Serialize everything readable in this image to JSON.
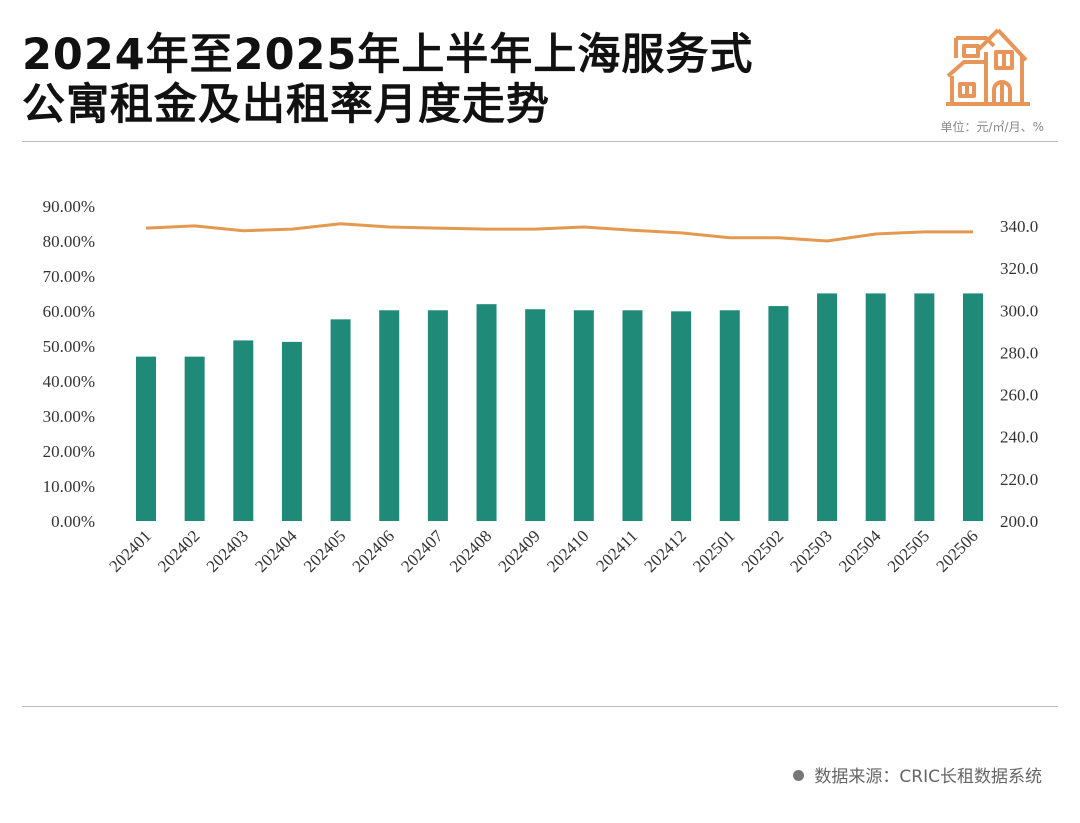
{
  "title_line1": "2024年至2025年上半年上海服务式",
  "title_line2": "公寓租金及出租率月度走势",
  "unit": "单位：元/㎡/月、%",
  "icon": "house-icon",
  "footer": "数据来源：CRIC长租数据系统",
  "chart_data": {
    "type": "bar+line",
    "categories": [
      "202401",
      "202402",
      "202403",
      "202404",
      "202405",
      "202406",
      "202407",
      "202408",
      "202409",
      "202410",
      "202411",
      "202412",
      "202501",
      "202502",
      "202503",
      "202504",
      "202505",
      "202506"
    ],
    "series": [
      {
        "type": "bar",
        "axis": "right",
        "color": "#1f8a78",
        "values": [
          278,
          278,
          285.7,
          285,
          295.7,
          300,
          300,
          302.9,
          300.5,
          300,
          300,
          299.5,
          300,
          302,
          308,
          308,
          308,
          308
        ]
      },
      {
        "type": "line",
        "axis": "left",
        "color": "#e39a4e",
        "values": [
          83.7,
          84.3,
          82.9,
          83.4,
          84.9,
          84.0,
          83.7,
          83.4,
          83.4,
          84.0,
          83.1,
          82.3,
          80.9,
          80.9,
          80.0,
          82.0,
          82.6,
          82.6
        ]
      }
    ],
    "left_axis": {
      "ylim": [
        0,
        90
      ],
      "ticks": [
        "0.00%",
        "10.00%",
        "20.00%",
        "30.00%",
        "40.00%",
        "50.00%",
        "60.00%",
        "70.00%",
        "80.00%",
        "90.00%"
      ]
    },
    "right_axis": {
      "ylim": [
        200,
        340
      ],
      "ticks": [
        "200.0",
        "220.0",
        "240.0",
        "260.0",
        "280.0",
        "300.0",
        "320.0",
        "340.0"
      ]
    },
    "grid": false,
    "legend": "none"
  }
}
